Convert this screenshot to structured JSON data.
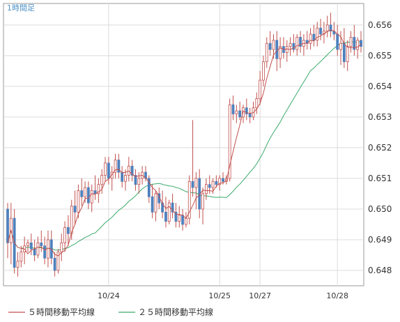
{
  "chart_data": {
    "type": "candlestick",
    "timeframe_label": "1時間足",
    "ylim": [
      0.6475,
      0.6567
    ],
    "y_ticks": [
      0.648,
      0.649,
      0.65,
      0.651,
      0.652,
      0.653,
      0.654,
      0.655,
      0.656
    ],
    "y_tick_labels": [
      "0.648",
      "0.649",
      "0.650",
      "0.651",
      "0.652",
      "0.653",
      "0.654",
      "0.655",
      "0.656"
    ],
    "x_ticks": [
      {
        "label": "10/24",
        "index": 30
      },
      {
        "label": "10/25",
        "index": 63
      },
      {
        "label": "10/27",
        "index": 75
      },
      {
        "label": "10/28",
        "index": 98
      }
    ],
    "candles": [
      [
        0.65,
        0.6502,
        0.6484,
        0.6489
      ],
      [
        0.6489,
        0.6502,
        0.6482,
        0.6497
      ],
      [
        0.6497,
        0.65,
        0.6479,
        0.6481
      ],
      [
        0.6481,
        0.6486,
        0.6478,
        0.6483
      ],
      [
        0.6483,
        0.6488,
        0.6481,
        0.6486
      ],
      [
        0.6486,
        0.6491,
        0.6482,
        0.6488
      ],
      [
        0.6488,
        0.649,
        0.6486,
        0.6489
      ],
      [
        0.6489,
        0.6492,
        0.6485,
        0.6487
      ],
      [
        0.6487,
        0.649,
        0.6483,
        0.6485
      ],
      [
        0.6485,
        0.6491,
        0.6484,
        0.6489
      ],
      [
        0.6489,
        0.6493,
        0.6486,
        0.6488
      ],
      [
        0.6488,
        0.6491,
        0.6482,
        0.6484
      ],
      [
        0.6484,
        0.6493,
        0.6481,
        0.649
      ],
      [
        0.649,
        0.6493,
        0.6482,
        0.6484
      ],
      [
        0.6484,
        0.6486,
        0.6478,
        0.648
      ],
      [
        0.648,
        0.6487,
        0.6479,
        0.6486
      ],
      [
        0.6486,
        0.6492,
        0.6483,
        0.6489
      ],
      [
        0.6489,
        0.6496,
        0.6486,
        0.6494
      ],
      [
        0.6494,
        0.6498,
        0.6488,
        0.6492
      ],
      [
        0.6492,
        0.6503,
        0.649,
        0.6501
      ],
      [
        0.6501,
        0.6506,
        0.6495,
        0.6499
      ],
      [
        0.6499,
        0.6508,
        0.6497,
        0.6506
      ],
      [
        0.6506,
        0.651,
        0.6501,
        0.6504
      ],
      [
        0.6504,
        0.6509,
        0.6502,
        0.6507
      ],
      [
        0.6507,
        0.6509,
        0.65,
        0.6502
      ],
      [
        0.6502,
        0.6508,
        0.6499,
        0.6506
      ],
      [
        0.6506,
        0.6511,
        0.6503,
        0.6505
      ],
      [
        0.6505,
        0.651,
        0.6502,
        0.6508
      ],
      [
        0.6508,
        0.6513,
        0.6505,
        0.6511
      ],
      [
        0.6511,
        0.6517,
        0.6509,
        0.6515
      ],
      [
        0.6515,
        0.6517,
        0.6508,
        0.651
      ],
      [
        0.651,
        0.6514,
        0.6506,
        0.6512
      ],
      [
        0.6512,
        0.6518,
        0.651,
        0.6516
      ],
      [
        0.6516,
        0.6518,
        0.651,
        0.6512
      ],
      [
        0.6512,
        0.6514,
        0.6507,
        0.6509
      ],
      [
        0.6509,
        0.6513,
        0.6506,
        0.6511
      ],
      [
        0.6511,
        0.6517,
        0.6509,
        0.6514
      ],
      [
        0.6514,
        0.6516,
        0.6509,
        0.6511
      ],
      [
        0.6511,
        0.6513,
        0.6506,
        0.6508
      ],
      [
        0.6508,
        0.6512,
        0.6505,
        0.651
      ],
      [
        0.651,
        0.6514,
        0.6508,
        0.6512
      ],
      [
        0.6512,
        0.6514,
        0.6509,
        0.651
      ],
      [
        0.651,
        0.6511,
        0.6502,
        0.6504
      ],
      [
        0.6504,
        0.6508,
        0.6497,
        0.6499
      ],
      [
        0.6499,
        0.6506,
        0.6496,
        0.6505
      ],
      [
        0.6505,
        0.6507,
        0.65,
        0.6502
      ],
      [
        0.6502,
        0.6506,
        0.6497,
        0.6499
      ],
      [
        0.6499,
        0.6504,
        0.6494,
        0.6496
      ],
      [
        0.6496,
        0.6503,
        0.6495,
        0.6502
      ],
      [
        0.6502,
        0.6505,
        0.6497,
        0.6499
      ],
      [
        0.6499,
        0.6502,
        0.6494,
        0.6496
      ],
      [
        0.6496,
        0.6501,
        0.6494,
        0.6498
      ],
      [
        0.6498,
        0.65,
        0.6493,
        0.6495
      ],
      [
        0.6495,
        0.6499,
        0.6494,
        0.6497
      ],
      [
        0.6497,
        0.6511,
        0.6495,
        0.6509
      ],
      [
        0.6509,
        0.6529,
        0.6504,
        0.6507
      ],
      [
        0.6507,
        0.6512,
        0.65,
        0.651
      ],
      [
        0.651,
        0.6513,
        0.6497,
        0.65
      ],
      [
        0.65,
        0.6507,
        0.6495,
        0.6505
      ],
      [
        0.6505,
        0.651,
        0.6503,
        0.6508
      ],
      [
        0.6508,
        0.6511,
        0.6505,
        0.6507
      ],
      [
        0.6507,
        0.651,
        0.6505,
        0.6509
      ],
      [
        0.6509,
        0.6511,
        0.6507,
        0.6508
      ],
      [
        0.6508,
        0.6511,
        0.6506,
        0.651
      ],
      [
        0.651,
        0.6512,
        0.6508,
        0.6509
      ],
      [
        0.6509,
        0.6511,
        0.6508,
        0.651
      ],
      [
        0.651,
        0.6536,
        0.6509,
        0.6534
      ],
      [
        0.6534,
        0.6537,
        0.6529,
        0.6531
      ],
      [
        0.6531,
        0.6534,
        0.6528,
        0.6532
      ],
      [
        0.6532,
        0.6535,
        0.6529,
        0.653
      ],
      [
        0.653,
        0.6534,
        0.6528,
        0.6533
      ],
      [
        0.6533,
        0.6536,
        0.6529,
        0.6531
      ],
      [
        0.6531,
        0.6533,
        0.6528,
        0.653
      ],
      [
        0.653,
        0.6535,
        0.6529,
        0.6533
      ],
      [
        0.6533,
        0.6538,
        0.6531,
        0.6536
      ],
      [
        0.6536,
        0.6545,
        0.6534,
        0.6542
      ],
      [
        0.6542,
        0.655,
        0.654,
        0.6548
      ],
      [
        0.6548,
        0.6556,
        0.6546,
        0.6554
      ],
      [
        0.6554,
        0.6558,
        0.655,
        0.6552
      ],
      [
        0.6552,
        0.6557,
        0.6549,
        0.6555
      ],
      [
        0.6555,
        0.6558,
        0.6545,
        0.6549
      ],
      [
        0.6549,
        0.6556,
        0.6546,
        0.6553
      ],
      [
        0.6553,
        0.6556,
        0.6549,
        0.6551
      ],
      [
        0.6551,
        0.6555,
        0.6548,
        0.6553
      ],
      [
        0.6553,
        0.6556,
        0.655,
        0.6554
      ],
      [
        0.6554,
        0.6557,
        0.6551,
        0.6552
      ],
      [
        0.6552,
        0.6557,
        0.655,
        0.6556
      ],
      [
        0.6556,
        0.6558,
        0.6551,
        0.6553
      ],
      [
        0.6553,
        0.6557,
        0.655,
        0.6555
      ],
      [
        0.6555,
        0.6558,
        0.6552,
        0.6554
      ],
      [
        0.6554,
        0.6559,
        0.6552,
        0.6557
      ],
      [
        0.6557,
        0.656,
        0.6553,
        0.6555
      ],
      [
        0.6555,
        0.6561,
        0.6553,
        0.6559
      ],
      [
        0.6559,
        0.6562,
        0.6555,
        0.6557
      ],
      [
        0.6557,
        0.6561,
        0.6554,
        0.6558
      ],
      [
        0.6558,
        0.6563,
        0.6556,
        0.656
      ],
      [
        0.656,
        0.6564,
        0.6556,
        0.6558
      ],
      [
        0.6558,
        0.6561,
        0.6555,
        0.6557
      ],
      [
        0.6557,
        0.656,
        0.655,
        0.6552
      ],
      [
        0.6552,
        0.6558,
        0.6547,
        0.6554
      ],
      [
        0.6554,
        0.6559,
        0.6546,
        0.6548
      ],
      [
        0.6548,
        0.6555,
        0.6545,
        0.6553
      ],
      [
        0.6553,
        0.6558,
        0.6551,
        0.6556
      ],
      [
        0.6556,
        0.656,
        0.655,
        0.6552
      ],
      [
        0.6552,
        0.6556,
        0.6549,
        0.6555
      ],
      [
        0.6555,
        0.6558,
        0.6551,
        0.6553
      ]
    ],
    "series": [
      {
        "name": "５時間移動平均線",
        "color": "#c0504d",
        "period": 5
      },
      {
        "name": "２５時間移動平均線",
        "color": "#3aaa6a",
        "period": 25
      }
    ],
    "up_color": "#ffffff",
    "down_color": "#4f81bd",
    "wick_color": "#c0504d",
    "grid": true,
    "legend_position": "bottom-left"
  }
}
